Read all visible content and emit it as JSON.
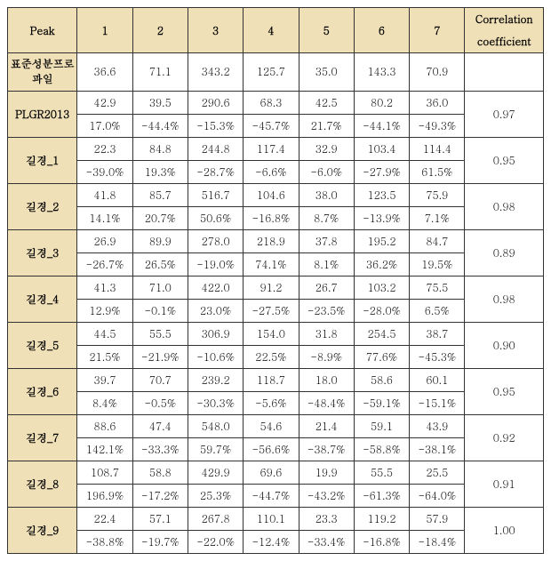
{
  "table": {
    "headers": {
      "peak": "Peak",
      "cols": [
        "1",
        "2",
        "3",
        "4",
        "5",
        "6",
        "7"
      ],
      "corr_line1": "Correlation",
      "corr_line2": "coefficient"
    },
    "std_profile": {
      "label_line1": "표준성분프로",
      "label_line2": "파일",
      "vals": [
        "36.6",
        "71.1",
        "343.2",
        "125.7",
        "35.0",
        "143.3",
        "70.9"
      ]
    },
    "rows": [
      {
        "label": "PLGR2013",
        "vals": [
          "42.9",
          "39.5",
          "290.6",
          "68.3",
          "42.5",
          "80.2",
          "36.0"
        ],
        "pcts": [
          "17.0%",
          "-44.4%",
          "-15.3%",
          "-45.7%",
          "21.7%",
          "-44.1%",
          "-49.3%"
        ],
        "corr": "0.97"
      },
      {
        "label": "길경_1",
        "vals": [
          "22.3",
          "84.8",
          "244.8",
          "117.4",
          "32.9",
          "103.4",
          "114.4"
        ],
        "pcts": [
          "-39.0%",
          "19.3%",
          "-28.7%",
          "-6.6%",
          "-6.0%",
          "-27.9%",
          "61.5%"
        ],
        "corr": "0.95"
      },
      {
        "label": "길경_2",
        "vals": [
          "41.8",
          "85.7",
          "516.7",
          "104.6",
          "38.0",
          "123.5",
          "75.9"
        ],
        "pcts": [
          "14.1%",
          "20.7%",
          "50.6%",
          "-16.8%",
          "8.7%",
          "-13.9%",
          "7.1%"
        ],
        "corr": "0.98"
      },
      {
        "label": "길경_3",
        "vals": [
          "26.9",
          "89.9",
          "278.0",
          "218.9",
          "37.8",
          "195.2",
          "84.7"
        ],
        "pcts": [
          "-26.7%",
          "26.5%",
          "-19.0%",
          "74.1%",
          "8.1%",
          "36.2%",
          "19.5%"
        ],
        "corr": "0.89"
      },
      {
        "label": "길경_4",
        "vals": [
          "41.3",
          "71.0",
          "422.0",
          "91.2",
          "26.7",
          "103.2",
          "75.5"
        ],
        "pcts": [
          "12.9%",
          "-0.1%",
          "23.0%",
          "-27.5%",
          "-23.5%",
          "-28.0%",
          "6.5%"
        ],
        "corr": "0.98"
      },
      {
        "label": "길경_5",
        "vals": [
          "44.5",
          "55.5",
          "306.9",
          "154.0",
          "31.8",
          "254.5",
          "38.7"
        ],
        "pcts": [
          "21.5%",
          "-21.9%",
          "-10.6%",
          "22.5%",
          "-8.9%",
          "77.6%",
          "-45.3%"
        ],
        "corr": "0.90"
      },
      {
        "label": "길경_6",
        "vals": [
          "39.7",
          "70.7",
          "239.2",
          "118.7",
          "18.0",
          "58.6",
          "60.1"
        ],
        "pcts": [
          "8.4%",
          "-0.5%",
          "-30.3%",
          "-5.6%",
          "-48.4%",
          "-59.1%",
          "-15.1%"
        ],
        "corr": "0.95"
      },
      {
        "label": "길경_7",
        "vals": [
          "88.6",
          "47.4",
          "548.0",
          "54.6",
          "21.4",
          "59.1",
          "43.9"
        ],
        "pcts": [
          "142.1%",
          "-33.3%",
          "59.7%",
          "-56.6%",
          "-38.7%",
          "-58.8%",
          "-38.1%"
        ],
        "corr": "0.92"
      },
      {
        "label": "길경_8",
        "vals": [
          "108.7",
          "58.8",
          "429.9",
          "69.6",
          "19.9",
          "55.5",
          "25.5"
        ],
        "pcts": [
          "196.9%",
          "-17.2%",
          "25.3%",
          "-44.7%",
          "-43.2%",
          "-61.3%",
          "-64.0%"
        ],
        "corr": "0.91"
      },
      {
        "label": "길경_9",
        "vals": [
          "22.4",
          "57.1",
          "267.8",
          "110.1",
          "23.3",
          "119.2",
          "57.9"
        ],
        "pcts": [
          "-38.8%",
          "-19.7%",
          "-22.0%",
          "-12.4%",
          "-33.4%",
          "-16.8%",
          "-18.4%"
        ],
        "corr": "1.00"
      }
    ]
  }
}
